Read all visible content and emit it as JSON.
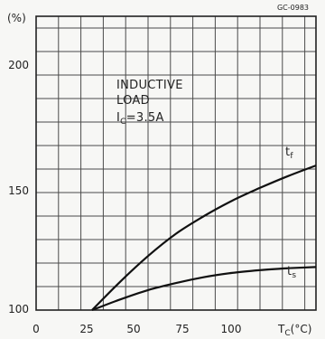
{
  "figure_code": "GC-0983",
  "chart_data": {
    "type": "line",
    "ylabel": "(%)",
    "xlabel_base": "T",
    "xlabel_sub": "C",
    "xlabel_unit": "(°C)",
    "xlim": [
      0,
      125
    ],
    "ylim": [
      100,
      225
    ],
    "x_tick_labels": [
      "0",
      "25",
      "50",
      "75",
      "100"
    ],
    "y_tick_labels": [
      "100",
      "150",
      "200"
    ],
    "annotation": {
      "line1": "INDUCTIVE",
      "line2": "LOAD",
      "line3_base": "I",
      "line3_sub": "C",
      "line3_rest": "=3.5A"
    },
    "series": [
      {
        "name_base": "t",
        "name_sub": "f",
        "x": [
          25,
          37.5,
          50,
          62.5,
          75,
          87.5,
          100,
          112.5,
          125
        ],
        "y": [
          100,
          112,
          123,
          132.5,
          140,
          146.5,
          152,
          157,
          161.5
        ]
      },
      {
        "name_base": "t",
        "name_sub": "s",
        "x": [
          25,
          37.5,
          50,
          62.5,
          75,
          87.5,
          100,
          112.5,
          125
        ],
        "y": [
          100,
          104.5,
          108.5,
          111.5,
          114,
          115.8,
          117,
          117.8,
          118.3
        ]
      }
    ]
  }
}
